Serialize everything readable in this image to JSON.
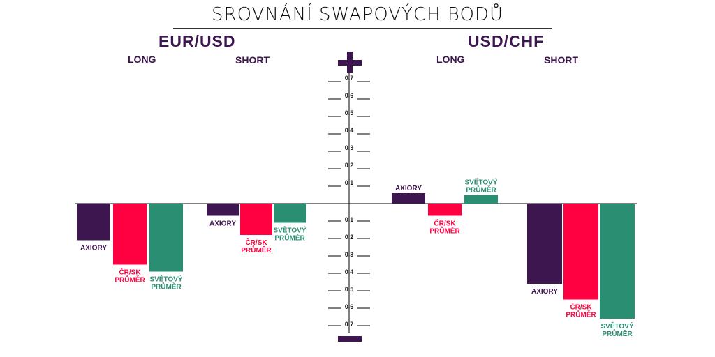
{
  "title": "SROVNÁNÍ SWAPOVÝCH BODŮ",
  "colors": {
    "axiory": "#3d154f",
    "cr_sk": "#ff0040",
    "svetovy": "#2a8f72",
    "text_dark": "#3d154f",
    "axis": "#000000"
  },
  "groups": {
    "eurusd": {
      "pair": "EUR/USD",
      "long": "LONG",
      "short": "SHORT"
    },
    "usdchf": {
      "pair": "USD/CHF",
      "long": "LONG",
      "short": "SHORT"
    }
  },
  "axis": {
    "plus": "+",
    "up_ticks": [
      "0,7",
      "0,6",
      "0,5",
      "0,4",
      "0,3",
      "0,2",
      "0,1"
    ],
    "down_ticks": [
      "0,1",
      "0,2",
      "0,3",
      "0,4",
      "0,5",
      "0,6",
      "0,7"
    ]
  },
  "chart_data": {
    "type": "bar",
    "title": "SROVNÁNÍ SWAPOVÝCH BODŮ",
    "ylim": [
      -0.7,
      0.7
    ],
    "groups": [
      {
        "pair": "EUR/USD",
        "side": "LONG",
        "bars": [
          {
            "label": [
              "AXIORY"
            ],
            "series": "axiory",
            "value": -0.21
          },
          {
            "label": [
              "ČR/SK",
              "PRŮMĚR"
            ],
            "series": "cr_sk",
            "value": -0.35
          },
          {
            "label": [
              "SVĚTOVÝ",
              "PRŮMĚR"
            ],
            "series": "svetovy",
            "value": -0.39
          }
        ]
      },
      {
        "pair": "EUR/USD",
        "side": "SHORT",
        "bars": [
          {
            "label": [
              "AXIORY"
            ],
            "series": "axiory",
            "value": -0.07
          },
          {
            "label": [
              "ČR/SK",
              "PRŮMĚR"
            ],
            "series": "cr_sk",
            "value": -0.18
          },
          {
            "label": [
              "SVĚTOVÝ",
              "PRŮMĚR"
            ],
            "series": "svetovy",
            "value": -0.11
          }
        ]
      },
      {
        "pair": "USD/CHF",
        "side": "LONG",
        "bars": [
          {
            "label": [
              "AXIORY"
            ],
            "series": "axiory",
            "value": 0.06
          },
          {
            "label": [
              "ČR/SK",
              "PRŮMĚR"
            ],
            "series": "cr_sk",
            "value": -0.07
          },
          {
            "label": [
              "SVĚTOVÝ",
              "PRŮMĚR"
            ],
            "series": "svetovy",
            "value": 0.05
          }
        ]
      },
      {
        "pair": "USD/CHF",
        "side": "SHORT",
        "bars": [
          {
            "label": [
              "AXIORY"
            ],
            "series": "axiory",
            "value": -0.46
          },
          {
            "label": [
              "ČR/SK",
              "PRŮMĚR"
            ],
            "series": "cr_sk",
            "value": -0.55
          },
          {
            "label": [
              "SVĚTOVÝ",
              "PRŮMĚR"
            ],
            "series": "svetovy",
            "value": -0.66
          }
        ]
      }
    ]
  }
}
